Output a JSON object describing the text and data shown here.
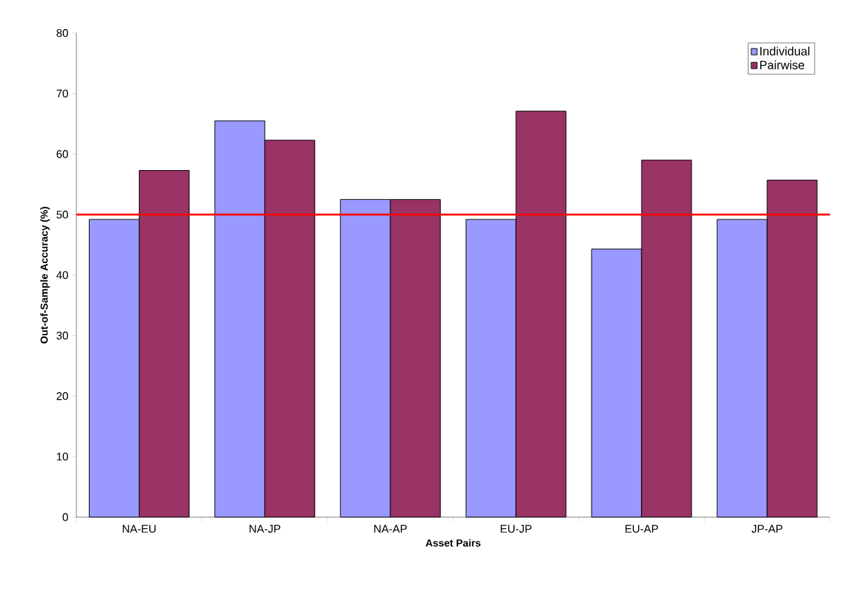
{
  "chart_data": {
    "type": "bar",
    "xlabel": "Asset Pairs",
    "ylabel": "Out-of-Sample Accuracy (%)",
    "categories": [
      "NA-EU",
      "NA-JP",
      "NA-AP",
      "EU-JP",
      "EU-AP",
      "JP-AP"
    ],
    "series": [
      {
        "name": "Individual",
        "color": "#9999ff",
        "values": [
          49.2,
          65.5,
          52.5,
          49.2,
          44.3,
          49.2
        ]
      },
      {
        "name": "Pairwise",
        "color": "#993366",
        "values": [
          57.3,
          62.3,
          52.5,
          67.1,
          59.0,
          55.7
        ]
      }
    ],
    "ylim": [
      0,
      80
    ],
    "yticks": [
      0,
      10,
      20,
      30,
      40,
      50,
      60,
      70,
      80
    ],
    "ref_lines": [
      {
        "axis": "y",
        "value": 50,
        "color": "#ff0000"
      }
    ],
    "grid": false,
    "legend": "top right"
  }
}
